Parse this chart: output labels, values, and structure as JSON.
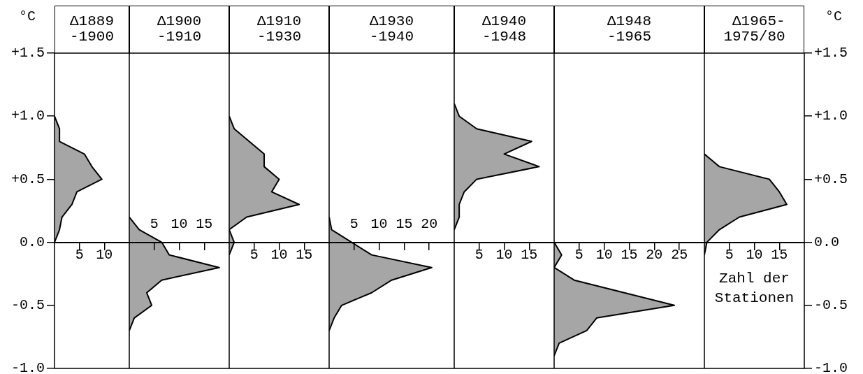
{
  "chart_data": [
    {
      "type": "area",
      "orientation": "horizontal",
      "title": "Δ1889\n-1900",
      "ylabel": "°C",
      "x": [
        1.0,
        0.9,
        0.8,
        0.7,
        0.6,
        0.5,
        0.4,
        0.3,
        0.2,
        0.1,
        0.0
      ],
      "series": [
        {
          "color": "#000000",
          "values": [
            0,
            1,
            1,
            6,
            7.5,
            9.5,
            4.5,
            3.5,
            1.5,
            1,
            0
          ]
        }
      ],
      "xlim": [
        0,
        15
      ],
      "xticks": [
        5,
        10
      ],
      "ylim": [
        -1.0,
        1.5
      ],
      "yticks": [
        {
          "value": -1.0,
          "label": "-1.0"
        },
        {
          "value": -0.5,
          "label": "-0.5"
        },
        {
          "value": 0,
          "label": "0.0"
        },
        {
          "value": 0.5,
          "label": "+0.5"
        },
        {
          "value": 1.0,
          "label": "+1.0"
        },
        {
          "value": 1.5,
          "label": "+1.5"
        }
      ]
    },
    {
      "type": "area",
      "orientation": "horizontal",
      "title": "Δ1900\n-1910",
      "x": [
        0.2,
        0.1,
        0.0,
        -0.1,
        -0.2,
        -0.3,
        -0.4,
        -0.5,
        -0.6,
        -0.7
      ],
      "series": [
        {
          "color": "#000000",
          "values": [
            0,
            2,
            6.5,
            8,
            18,
            6.5,
            3.5,
            4.5,
            1,
            0
          ]
        }
      ],
      "xlim": [
        0,
        20
      ],
      "xticks": [
        5,
        10,
        15
      ],
      "ylim": [
        -1.0,
        1.5
      ],
      "tick_labels": "x"
    },
    {
      "type": "area",
      "orientation": "horizontal",
      "title": "Δ1910\n-1930",
      "x": [
        1.0,
        0.9,
        0.8,
        0.7,
        0.6,
        0.5,
        0.4,
        0.3,
        0.2,
        0.1,
        0.0,
        -0.1
      ],
      "series": [
        {
          "color": "#000000",
          "values": [
            0,
            1,
            4,
            7,
            7,
            10,
            8.5,
            14,
            3.5,
            0,
            1,
            0
          ]
        }
      ],
      "xlim": [
        0,
        20
      ],
      "xticks": [
        5,
        10,
        15
      ],
      "ylim": [
        -1.0,
        1.5
      ],
      "tick_labels": "x"
    },
    {
      "type": "area",
      "orientation": "horizontal",
      "title": "Δ1930\n-1940",
      "x": [
        0.2,
        0.1,
        0.0,
        -0.1,
        -0.2,
        -0.3,
        -0.4,
        -0.5,
        -0.6,
        -0.7
      ],
      "series": [
        {
          "color": "#000000",
          "values": [
            0,
            0.5,
            4.5,
            8.5,
            20.5,
            12.5,
            8.5,
            2.5,
            1,
            0
          ]
        }
      ],
      "xlim": [
        0,
        25
      ],
      "xticks": [
        5,
        10,
        15,
        20
      ],
      "ylim": [
        -1.0,
        1.5
      ],
      "tick_labels": "x"
    },
    {
      "type": "area",
      "orientation": "horizontal",
      "title": "Δ1940\n-1948",
      "x": [
        1.1,
        1.0,
        0.9,
        0.8,
        0.7,
        0.6,
        0.5,
        0.4,
        0.3,
        0.2,
        0.1
      ],
      "series": [
        {
          "color": "#000000",
          "values": [
            0,
            1,
            4.5,
            15.5,
            10,
            17,
            4.5,
            2,
            1,
            1,
            0
          ]
        }
      ],
      "xlim": [
        0,
        20
      ],
      "xticks": [
        5,
        10,
        15
      ],
      "ylim": [
        -1.0,
        1.5
      ],
      "tick_labels": "x"
    },
    {
      "type": "area",
      "orientation": "horizontal",
      "title": "Δ1948\n-1965",
      "x": [
        0.0,
        -0.1,
        -0.2,
        -0.3,
        -0.4,
        -0.5,
        -0.6,
        -0.7,
        -0.8,
        -0.9
      ],
      "series": [
        {
          "color": "#000000",
          "values": [
            0,
            1.5,
            0,
            4,
            14,
            24,
            8.5,
            6.5,
            1,
            0
          ]
        }
      ],
      "xlim": [
        0,
        30
      ],
      "xticks": [
        5,
        10,
        15,
        20,
        25
      ],
      "ylim": [
        -1.0,
        1.5
      ],
      "tick_labels": "x"
    },
    {
      "type": "area",
      "orientation": "horizontal",
      "title": "Δ1965-\n1975/80",
      "xlabel": "Zahl der Stationen",
      "ylabel": "°C",
      "x": [
        0.7,
        0.6,
        0.5,
        0.4,
        0.3,
        0.2,
        0.1,
        0.0,
        -0.1
      ],
      "series": [
        {
          "color": "#000000",
          "values": [
            0,
            3,
            13,
            15,
            16.5,
            7,
            3,
            0.5,
            0
          ]
        }
      ],
      "xlim": [
        0,
        20
      ],
      "xticks": [
        5,
        10,
        15
      ],
      "ylim": [
        -1.0,
        1.5
      ],
      "yticks": [
        {
          "value": -1.0,
          "label": "-1.0"
        },
        {
          "value": -0.5,
          "label": "-0.5"
        },
        {
          "value": 0,
          "label": "0.0"
        },
        {
          "value": 0.5,
          "label": "+0.5"
        },
        {
          "value": 1.0,
          "label": "+1.0"
        },
        {
          "value": 1.5,
          "label": "+1.5"
        }
      ]
    }
  ]
}
